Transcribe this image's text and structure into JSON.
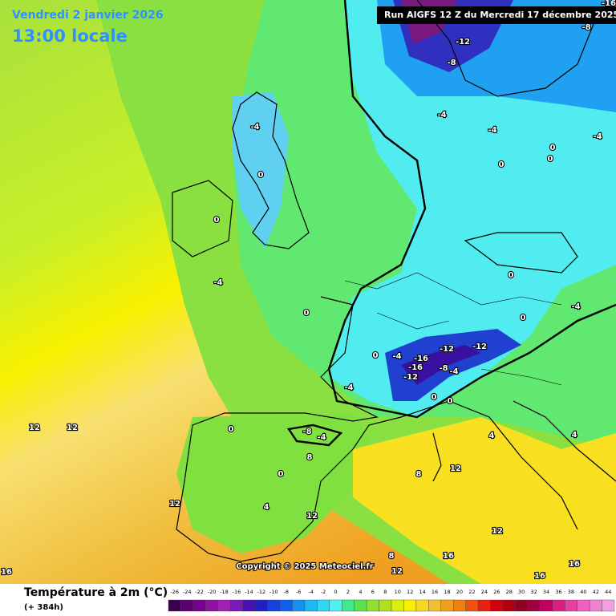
{
  "header": {
    "date": "Vendredi 2 janvier 2026",
    "time": "13:00 locale",
    "run": "Run AIGFS 12 Z du Mercredi 17 décembre 2025"
  },
  "copyright": "Copyright © 2025 Meteociel.fr",
  "legend": {
    "title": "Température à 2m (°C)",
    "lead": "(+ 384h)",
    "labels": [
      -26,
      -24,
      -22,
      -20,
      -18,
      -16,
      -14,
      -12,
      -10,
      -8,
      -6,
      -4,
      -2,
      0,
      2,
      4,
      6,
      8,
      10,
      12,
      14,
      16,
      18,
      20,
      22,
      24,
      26,
      28,
      30,
      32,
      34,
      36,
      38,
      40,
      42,
      44
    ],
    "colors": [
      "#3a0050",
      "#5a0070",
      "#780090",
      "#9010a0",
      "#a020b0",
      "#7a1ab8",
      "#4a10b0",
      "#2020c0",
      "#1840e0",
      "#1060f0",
      "#1890f0",
      "#20b8f0",
      "#30d8f0",
      "#50f0f0",
      "#40e890",
      "#60e050",
      "#90e030",
      "#b0e020",
      "#d8f010",
      "#f8f000",
      "#f8d820",
      "#f0c030",
      "#f0a020",
      "#f08010",
      "#f05010",
      "#e82010",
      "#d00010",
      "#b00010",
      "#900020",
      "#a00040",
      "#c00060",
      "#d82080",
      "#e840a0",
      "#f060c0",
      "#f080d0",
      "#f0a0e0"
    ]
  },
  "contours": [
    "-4",
    "0",
    "0",
    "-4",
    "0",
    "0",
    "-4",
    "-16",
    "-12",
    "-12",
    "-8",
    "-4",
    "-16",
    "-12",
    "-4",
    "0",
    "0",
    "12",
    "12",
    "0",
    "-8",
    "-4",
    "8",
    "0",
    "12",
    "4",
    "12",
    "8",
    "12",
    "12",
    "8",
    "12",
    "16",
    "16",
    "16",
    "16",
    "-12",
    "-8",
    "-4",
    "-4",
    "-4",
    "-4",
    "-8",
    "-16",
    "0",
    "0",
    "0",
    "0",
    "0",
    "4",
    "4"
  ]
}
